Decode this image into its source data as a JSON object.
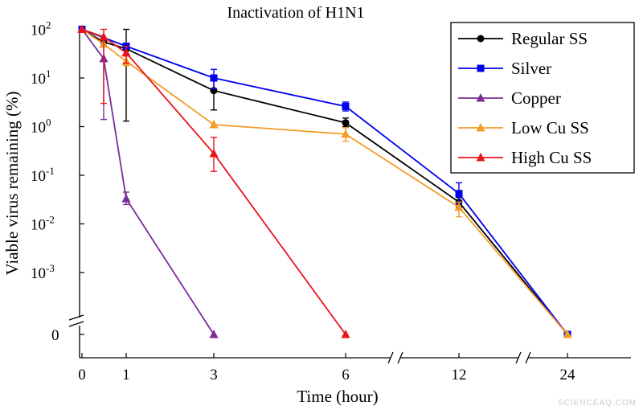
{
  "chart_data": {
    "type": "line",
    "title": "Inactivation of H1N1",
    "xlabel": "Time (hour)",
    "ylabel": "Viable virus remaining (%)",
    "x_ticks": [
      "0",
      "1",
      "3",
      "6",
      "12",
      "24"
    ],
    "x_axis_breaks": [
      [
        6,
        12
      ],
      [
        12,
        24
      ]
    ],
    "y_scale": "log",
    "y_ticks": [
      {
        "base": "10",
        "exp": "2"
      },
      {
        "base": "10",
        "exp": "1"
      },
      {
        "base": "10",
        "exp": "0"
      },
      {
        "base": "10",
        "exp": "-1"
      },
      {
        "base": "10",
        "exp": "-2"
      },
      {
        "base": "10",
        "exp": "-3"
      }
    ],
    "y_zero_label": "0",
    "ylim_log10": [
      -3.8,
      2.2
    ],
    "grid": false,
    "legend_position": "top-right",
    "series": [
      {
        "name": "Regular SS",
        "color": "#000000",
        "marker": "circle",
        "points": [
          {
            "x": 0,
            "y": 100
          },
          {
            "x": 0.5,
            "y": 55,
            "lo": 55,
            "hi": 55
          },
          {
            "x": 1,
            "y": 40,
            "lo": 1.3,
            "hi": 100
          },
          {
            "x": 3,
            "y": 5.5,
            "lo": 2.2,
            "hi": 9
          },
          {
            "x": 6,
            "y": 1.2,
            "lo": 1.0,
            "hi": 1.5
          },
          {
            "x": 12,
            "y": 0.028,
            "lo": 0.022,
            "hi": 0.035
          },
          {
            "x": 24,
            "y": 0
          }
        ]
      },
      {
        "name": "Silver",
        "color": "#0000ee",
        "marker": "square",
        "points": [
          {
            "x": 0,
            "y": 100
          },
          {
            "x": 1,
            "y": 45
          },
          {
            "x": 3,
            "y": 10,
            "lo": 6,
            "hi": 15
          },
          {
            "x": 6,
            "y": 2.6,
            "lo": 2.1,
            "hi": 3.2
          },
          {
            "x": 12,
            "y": 0.042,
            "lo": 0.026,
            "hi": 0.07
          },
          {
            "x": 24,
            "y": 0
          }
        ]
      },
      {
        "name": "Copper",
        "color": "#7b2c96",
        "marker": "triangle",
        "points": [
          {
            "x": 0,
            "y": 100
          },
          {
            "x": 0.5,
            "y": 25,
            "lo": 1.4,
            "hi": 60
          },
          {
            "x": 1,
            "y": 0.033,
            "lo": 0.025,
            "hi": 0.045
          },
          {
            "x": 3,
            "y": 0
          }
        ]
      },
      {
        "name": "Low Cu SS",
        "color": "#f39c26",
        "marker": "triangle",
        "points": [
          {
            "x": 0,
            "y": 100
          },
          {
            "x": 0.5,
            "y": 50
          },
          {
            "x": 1,
            "y": 22,
            "lo": 18,
            "hi": 28
          },
          {
            "x": 3,
            "y": 1.1
          },
          {
            "x": 6,
            "y": 0.7,
            "lo": 0.5,
            "hi": 0.95
          },
          {
            "x": 12,
            "y": 0.022,
            "lo": 0.014,
            "hi": 0.028
          },
          {
            "x": 24,
            "y": 0
          }
        ]
      },
      {
        "name": "High Cu SS",
        "color": "#e8141c",
        "marker": "triangle",
        "points": [
          {
            "x": 0,
            "y": 100
          },
          {
            "x": 0.5,
            "y": 70,
            "lo": 3,
            "hi": 100
          },
          {
            "x": 1,
            "y": 33,
            "lo": 20,
            "hi": 45
          },
          {
            "x": 3,
            "y": 0.28,
            "lo": 0.12,
            "hi": 0.6
          },
          {
            "x": 6,
            "y": 0
          }
        ]
      }
    ]
  },
  "watermark": "SCIENCEAQ.COM"
}
